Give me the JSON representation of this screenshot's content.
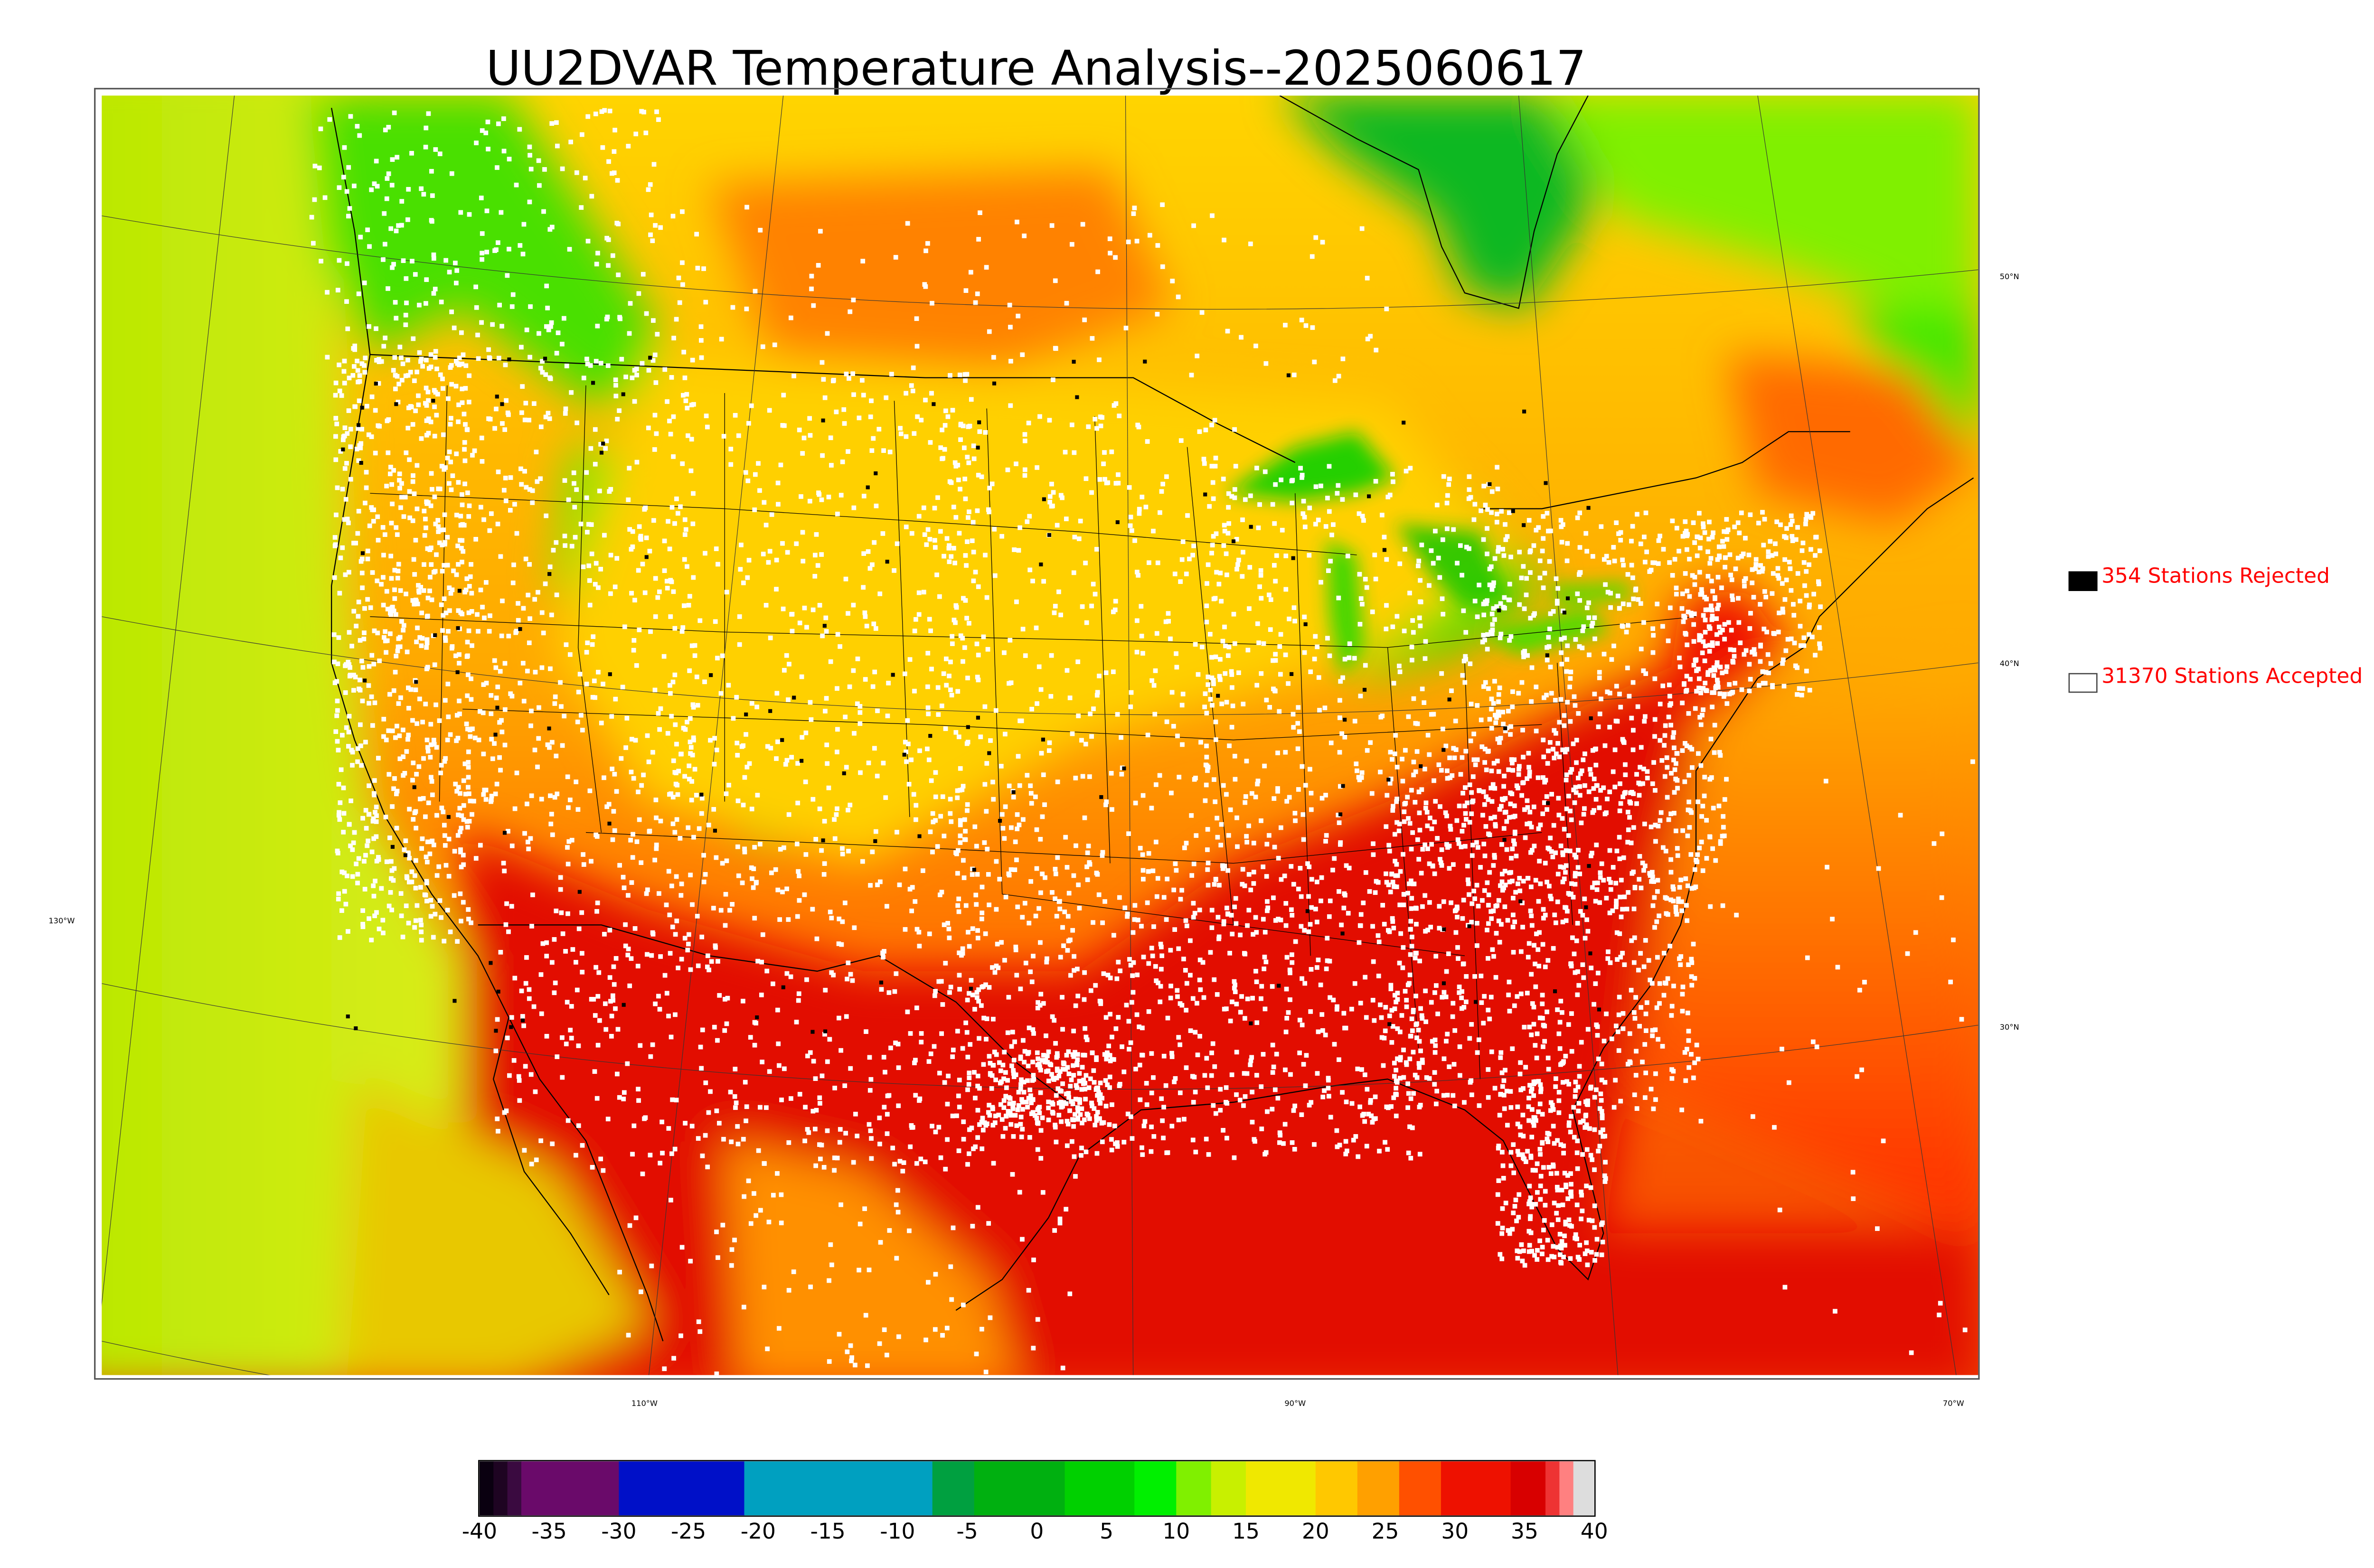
{
  "title": "UU2DVAR Temperature Analysis--2025060617",
  "legend": {
    "rejected": {
      "label": "354 Stations Rejected",
      "swatch_color": "#000000"
    },
    "accepted": {
      "label": "31370 Stations Accepted",
      "swatch_color": "#ffffff"
    },
    "text_color": "#ff0000"
  },
  "graticule_labels": {
    "longitude": [
      "130°W",
      "110°W",
      "90°W",
      "70°W"
    ],
    "latitude": [
      "50°N",
      "40°N",
      "30°N"
    ]
  },
  "colorbar": {
    "ticks": [
      "-40",
      "-35",
      "-30",
      "-25",
      "-20",
      "-15",
      "-10",
      "-5",
      "0",
      "5",
      "10",
      "15",
      "20",
      "25",
      "30",
      "35",
      "40"
    ],
    "range": [
      -40,
      40
    ],
    "segments": [
      {
        "from": -40,
        "to": -39,
        "color": "#0a0010"
      },
      {
        "from": -39,
        "to": -38,
        "color": "#1e0422"
      },
      {
        "from": -38,
        "to": -37,
        "color": "#3a0a40"
      },
      {
        "from": -37,
        "to": -30,
        "color": "#6a0a6a"
      },
      {
        "from": -30,
        "to": -21,
        "color": "#0010c8"
      },
      {
        "from": -21,
        "to": -7.5,
        "color": "#00a0c0"
      },
      {
        "from": -7.5,
        "to": -4.5,
        "color": "#00a040"
      },
      {
        "from": -4.5,
        "to": 2,
        "color": "#00b010"
      },
      {
        "from": 2,
        "to": 7,
        "color": "#00d000"
      },
      {
        "from": 7,
        "to": 10,
        "color": "#00f000"
      },
      {
        "from": 10,
        "to": 12.5,
        "color": "#80f000"
      },
      {
        "from": 12.5,
        "to": 15,
        "color": "#c8f000"
      },
      {
        "from": 15,
        "to": 20,
        "color": "#f0e800"
      },
      {
        "from": 20,
        "to": 23,
        "color": "#ffc800"
      },
      {
        "from": 23,
        "to": 26,
        "color": "#ffa000"
      },
      {
        "from": 26,
        "to": 29,
        "color": "#ff5000"
      },
      {
        "from": 29,
        "to": 34,
        "color": "#ee1100"
      },
      {
        "from": 34,
        "to": 36.5,
        "color": "#d80000"
      },
      {
        "from": 36.5,
        "to": 37.5,
        "color": "#ee3333"
      },
      {
        "from": 37.5,
        "to": 38.5,
        "color": "#ff8080"
      },
      {
        "from": 38.5,
        "to": 40,
        "color": "#dddddd"
      }
    ]
  },
  "colors": {
    "map_border": "#555555",
    "boundary_line": "#000000",
    "ocean_west": "#d8ea20",
    "hot": "#e00000",
    "warm": "#ffb000",
    "cool": "#30e000"
  }
}
